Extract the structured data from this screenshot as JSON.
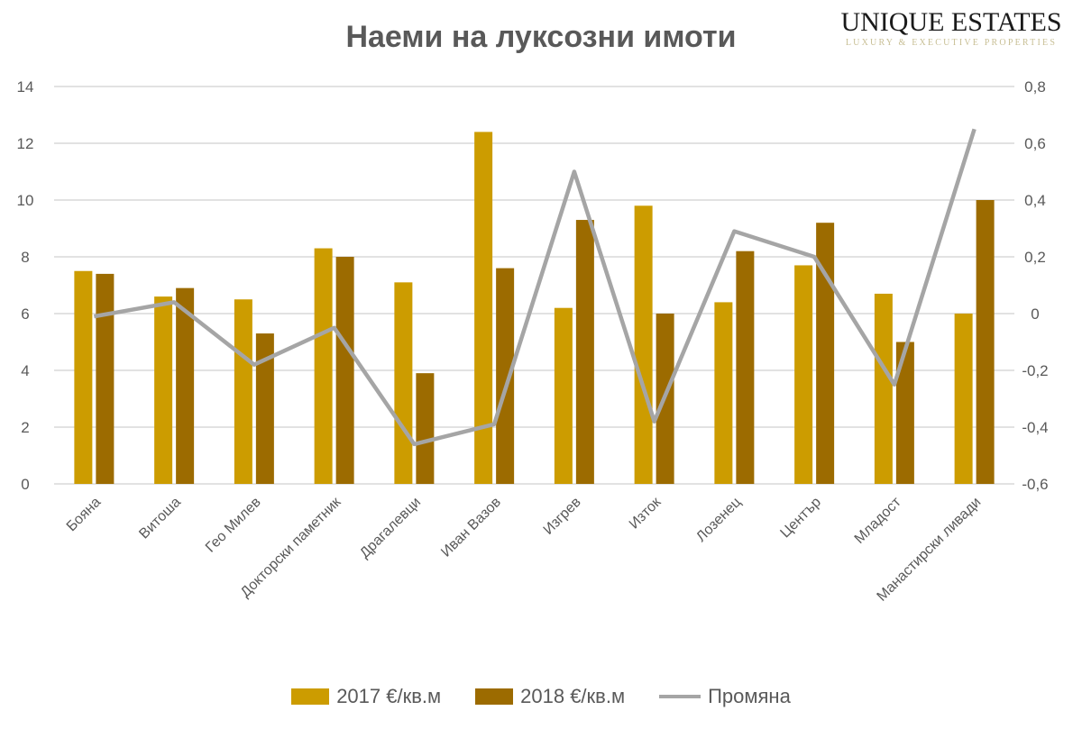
{
  "logo": {
    "line1": "UNIQUE ESTATES",
    "line2": "LUXURY & EXECUTIVE PROPERTIES"
  },
  "chart_data": {
    "type": "bar",
    "title": "Наеми на луксозни имоти",
    "categories": [
      "Бояна",
      "Витоша",
      "Гео Милев",
      "Докторски паметник",
      "Драгалевци",
      "Иван Вазов",
      "Изгрев",
      "Изток",
      "Лозенец",
      "Център",
      "Младост",
      "Манастирски ливади"
    ],
    "series": [
      {
        "name": "2017 €/кв.м",
        "type": "bar",
        "axis": "left",
        "color": "#cc9c00",
        "values": [
          7.5,
          6.6,
          6.5,
          8.3,
          7.1,
          12.4,
          6.2,
          9.8,
          6.4,
          7.7,
          6.7,
          6.0
        ]
      },
      {
        "name": "2018 €/кв.м",
        "type": "bar",
        "axis": "left",
        "color": "#9c6b00",
        "values": [
          7.4,
          6.9,
          5.3,
          8.0,
          3.9,
          7.6,
          9.3,
          6.0,
          8.2,
          9.2,
          5.0,
          10.0
        ]
      },
      {
        "name": "Промяна",
        "type": "line",
        "axis": "right",
        "color": "#a5a5a5",
        "values": [
          -0.01,
          0.04,
          -0.18,
          -0.05,
          -0.46,
          -0.39,
          0.5,
          -0.38,
          0.29,
          0.2,
          -0.25,
          0.65
        ]
      }
    ],
    "ylim": [
      0,
      14
    ],
    "yticks": [
      "0",
      "2",
      "4",
      "6",
      "8",
      "10",
      "12",
      "14"
    ],
    "y2lim": [
      -0.6,
      0.8
    ],
    "y2ticks": [
      "-0,6",
      "-0,4",
      "-0,2",
      "0",
      "0,2",
      "0,4",
      "0,6",
      "0,8"
    ],
    "grid": true,
    "legend": "bottom"
  }
}
